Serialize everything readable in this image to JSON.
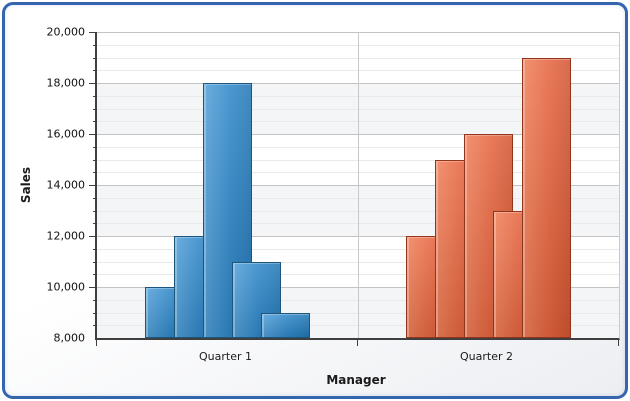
{
  "chart_data": {
    "type": "bar",
    "title": "",
    "xlabel": "Manager",
    "ylabel": "Sales",
    "categories": [
      "Quarter 1",
      "Quarter 2"
    ],
    "series": [
      {
        "name": "Quarter 1",
        "color": "#2e86c8",
        "values": [
          10000,
          12000,
          18000,
          11000,
          9000
        ]
      },
      {
        "name": "Quarter 2",
        "color": "#e5643e",
        "values": [
          12000,
          15000,
          16000,
          13000,
          19000
        ]
      }
    ],
    "ylim": [
      8000,
      20000
    ],
    "y_major_step": 2000,
    "y_minor_step": 500,
    "y_tick_labels": [
      "8,000",
      "10,000",
      "12,000",
      "14,000",
      "16,000",
      "18,000",
      "20,000"
    ],
    "legend": "none",
    "grid": {
      "interlaced_bands": true,
      "minor_gridlines": true,
      "category_divider": true
    },
    "bar_style": {
      "overlapped": true,
      "bars_per_group": 5
    }
  },
  "colors": {
    "frame_border": "#3565af",
    "band_fill": "#f4f5f6",
    "major_grid": "#c3c3c4",
    "minor_grid": "#e9e9ea",
    "axis": "#3f3f3f",
    "series_fills": [
      {
        "light": "#54a1d8",
        "mid": "#2e86c8",
        "dark": "#2277b4",
        "border": "#1c567c"
      },
      {
        "light": "#f0805a",
        "mid": "#e5643e",
        "dark": "#d25532",
        "border": "#93351a"
      }
    ]
  }
}
